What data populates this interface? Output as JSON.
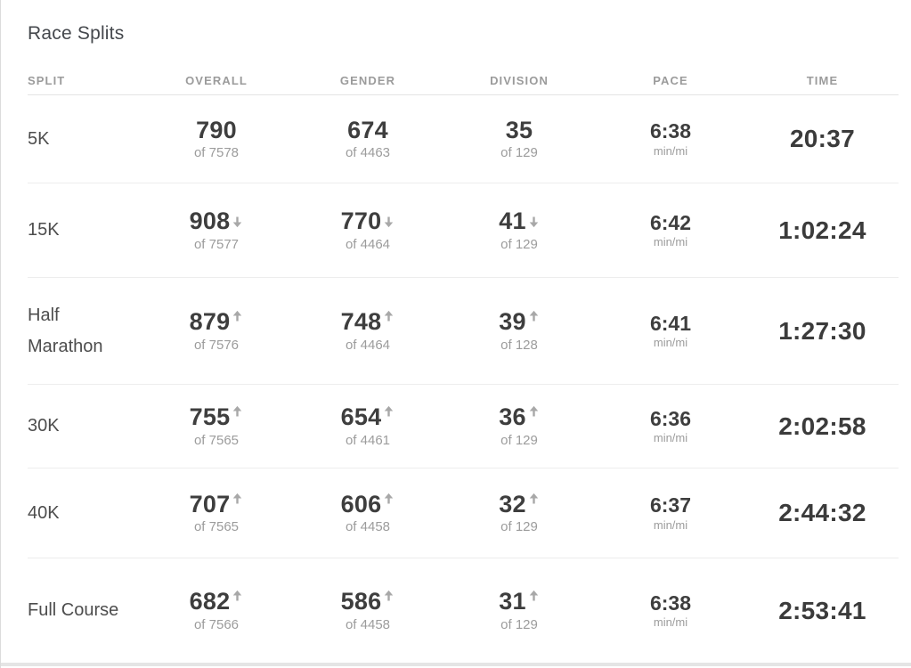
{
  "page": {
    "title": "Race Splits"
  },
  "colors": {
    "primary_text": "#3e3e3e",
    "secondary_text": "#9c9c9c",
    "header_text": "#9b9b9b",
    "arrow": "#a8a8a8",
    "divider": "#ededed"
  },
  "table": {
    "columns": [
      "SPLIT",
      "OVERALL",
      "GENDER",
      "DIVISION",
      "PACE",
      "TIME"
    ],
    "rows": [
      {
        "split": "5K",
        "overall": {
          "rank": "790",
          "of": "of 7578",
          "trend": "none"
        },
        "gender": {
          "rank": "674",
          "of": "of 4463",
          "trend": "none"
        },
        "division": {
          "rank": "35",
          "of": "of 129",
          "trend": "none"
        },
        "pace": {
          "value": "6:38",
          "unit": "min/mi"
        },
        "time": "20:37"
      },
      {
        "split": "15K",
        "overall": {
          "rank": "908",
          "of": "of 7577",
          "trend": "down"
        },
        "gender": {
          "rank": "770",
          "of": "of 4464",
          "trend": "down"
        },
        "division": {
          "rank": "41",
          "of": "of 129",
          "trend": "down"
        },
        "pace": {
          "value": "6:42",
          "unit": "min/mi"
        },
        "time": "1:02:24"
      },
      {
        "split": "Half Marathon",
        "overall": {
          "rank": "879",
          "of": "of 7576",
          "trend": "up"
        },
        "gender": {
          "rank": "748",
          "of": "of 4464",
          "trend": "up"
        },
        "division": {
          "rank": "39",
          "of": "of 128",
          "trend": "up"
        },
        "pace": {
          "value": "6:41",
          "unit": "min/mi"
        },
        "time": "1:27:30"
      },
      {
        "split": "30K",
        "overall": {
          "rank": "755",
          "of": "of 7565",
          "trend": "up"
        },
        "gender": {
          "rank": "654",
          "of": "of 4461",
          "trend": "up"
        },
        "division": {
          "rank": "36",
          "of": "of 129",
          "trend": "up"
        },
        "pace": {
          "value": "6:36",
          "unit": "min/mi"
        },
        "time": "2:02:58"
      },
      {
        "split": "40K",
        "overall": {
          "rank": "707",
          "of": "of 7565",
          "trend": "up"
        },
        "gender": {
          "rank": "606",
          "of": "of 4458",
          "trend": "up"
        },
        "division": {
          "rank": "32",
          "of": "of 129",
          "trend": "up"
        },
        "pace": {
          "value": "6:37",
          "unit": "min/mi"
        },
        "time": "2:44:32"
      },
      {
        "split": "Full Course",
        "overall": {
          "rank": "682",
          "of": "of 7566",
          "trend": "up"
        },
        "gender": {
          "rank": "586",
          "of": "of 4458",
          "trend": "up"
        },
        "division": {
          "rank": "31",
          "of": "of 129",
          "trend": "up"
        },
        "pace": {
          "value": "6:38",
          "unit": "min/mi"
        },
        "time": "2:53:41"
      }
    ]
  }
}
